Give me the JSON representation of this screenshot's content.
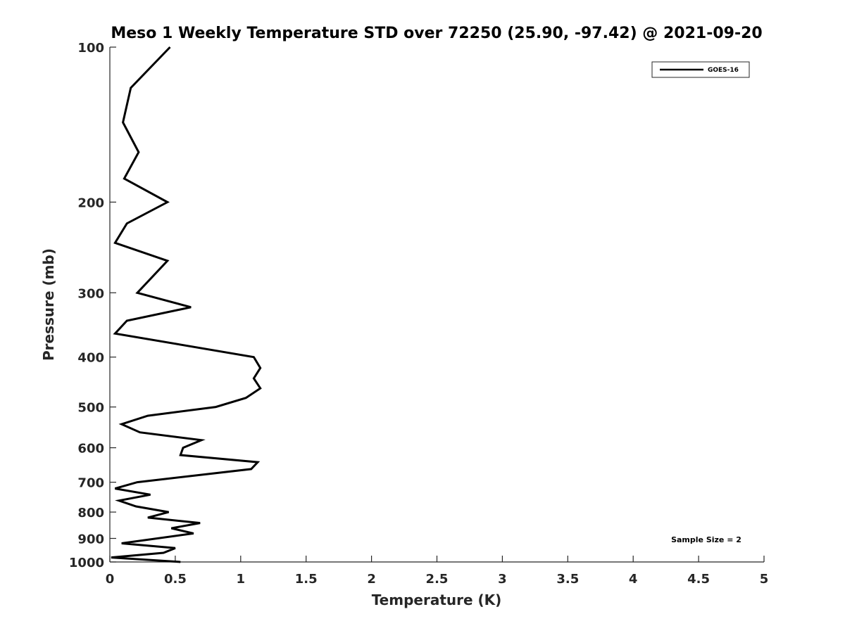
{
  "chart_data": {
    "type": "line",
    "title": "Meso 1 Weekly Temperature STD over 72250 (25.90, -97.42) @ 2021-09-20",
    "xlabel": "Temperature (K)",
    "ylabel": "Pressure (mb)",
    "xlim": [
      0,
      5
    ],
    "ylim": [
      100,
      1000
    ],
    "yscale": "log",
    "ydirection": "reverse",
    "grid": false,
    "legend_placement": "top-right",
    "xticks": [
      "0",
      "0.5",
      "1",
      "1.5",
      "2",
      "2.5",
      "3",
      "3.5",
      "4",
      "4.5",
      "5"
    ],
    "xtick_values": [
      0,
      0.5,
      1,
      1.5,
      2,
      2.5,
      3,
      3.5,
      4,
      4.5,
      5
    ],
    "yticks": [
      "100",
      "200",
      "300",
      "400",
      "500",
      "600",
      "700",
      "800",
      "900",
      "1000"
    ],
    "ytick_values": [
      100,
      200,
      300,
      400,
      500,
      600,
      700,
      800,
      900,
      1000
    ],
    "annotation": "Sample Size = 2",
    "series": [
      {
        "name": "GOES-16",
        "color": "#000000",
        "pressure": [
          100,
          120,
          140,
          160,
          180,
          200,
          220,
          240,
          260,
          300,
          320,
          340,
          360,
          400,
          420,
          440,
          460,
          480,
          500,
          520,
          540,
          560,
          580,
          600,
          620,
          640,
          660,
          700,
          720,
          740,
          760,
          780,
          800,
          820,
          840,
          860,
          880,
          920,
          940,
          960,
          980,
          1000
        ],
        "values": [
          0.46,
          0.16,
          0.1,
          0.22,
          0.11,
          0.44,
          0.13,
          0.04,
          0.44,
          0.21,
          0.62,
          0.13,
          0.04,
          1.1,
          1.15,
          1.1,
          1.15,
          1.04,
          0.81,
          0.29,
          0.09,
          0.23,
          0.7,
          0.56,
          0.54,
          1.13,
          1.08,
          0.21,
          0.04,
          0.31,
          0.07,
          0.2,
          0.45,
          0.29,
          0.69,
          0.47,
          0.64,
          0.09,
          0.5,
          0.41,
          0.01,
          0.54
        ]
      }
    ]
  }
}
